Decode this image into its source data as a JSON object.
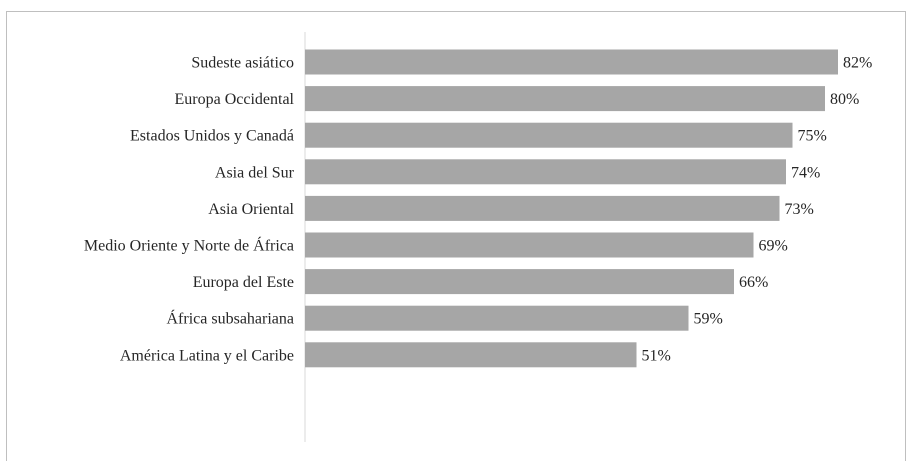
{
  "chart_data": {
    "type": "bar",
    "orientation": "horizontal",
    "categories": [
      "Sudeste asiático",
      "Europa Occidental",
      "Estados Unidos y Canadá",
      "Asia del Sur",
      "Asia Oriental",
      "Medio Oriente y Norte de África",
      "Europa del Este",
      "África subsahariana",
      "América Latina y el Caribe"
    ],
    "values": [
      82,
      80,
      75,
      74,
      73,
      69,
      66,
      59,
      51
    ],
    "labels": [
      "82%",
      "80%",
      "75%",
      "74%",
      "73%",
      "69%",
      "66%",
      "59%",
      "51%"
    ],
    "xlim": [
      0,
      100
    ],
    "bar_color": "#a6a6a6",
    "axis_color": "#d9d9d9",
    "grid": false
  }
}
